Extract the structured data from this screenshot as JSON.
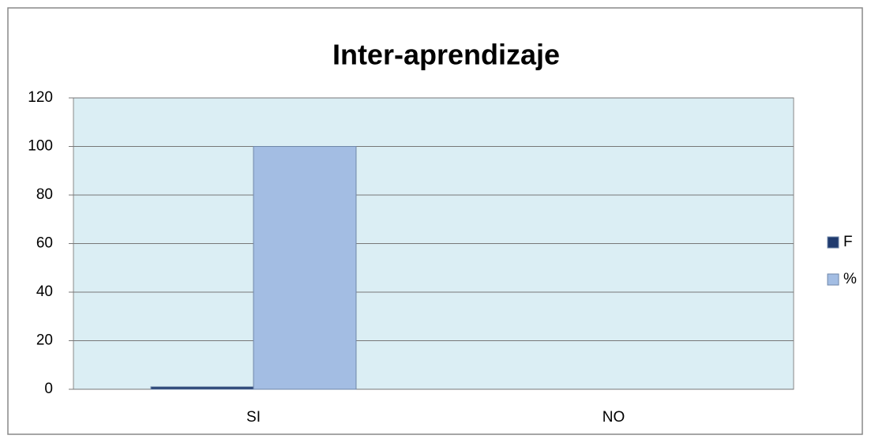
{
  "chart_data": {
    "type": "bar",
    "title": "Inter-aprendizaje",
    "categories": [
      "SI",
      "NO"
    ],
    "series": [
      {
        "name": "F",
        "color": "#1f3a6e",
        "values": [
          1,
          0
        ]
      },
      {
        "name": "%",
        "color": "#a3bde3",
        "values": [
          100,
          0
        ]
      }
    ],
    "ylim": [
      0,
      120
    ],
    "yticks": [
      0,
      20,
      40,
      60,
      80,
      100,
      120
    ],
    "grid": true,
    "legend": "right",
    "plot_background": "#dbeef4"
  }
}
